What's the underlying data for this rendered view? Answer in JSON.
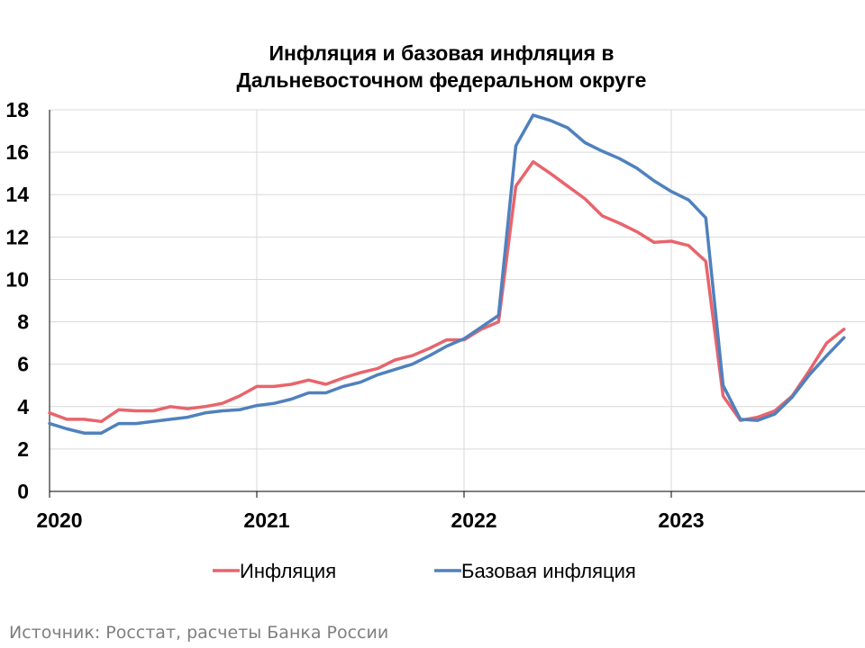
{
  "chart_data": {
    "type": "line",
    "title_line1": "Инфляция и базовая инфляция в",
    "title_line2": "Дальневосточном федеральном округе",
    "xlabel": "",
    "ylabel": "",
    "ylim": [
      0,
      18
    ],
    "yticks": [
      "0",
      "2",
      "4",
      "6",
      "8",
      "10",
      "12",
      "14",
      "16",
      "18"
    ],
    "x_tick_labels": [
      "2020",
      "2021",
      "2022",
      "2023"
    ],
    "grid": true,
    "legend_position": "bottom",
    "x": [
      "2020-01",
      "2020-02",
      "2020-03",
      "2020-04",
      "2020-05",
      "2020-06",
      "2020-07",
      "2020-08",
      "2020-09",
      "2020-10",
      "2020-11",
      "2020-12",
      "2021-01",
      "2021-02",
      "2021-03",
      "2021-04",
      "2021-05",
      "2021-06",
      "2021-07",
      "2021-08",
      "2021-09",
      "2021-10",
      "2021-11",
      "2021-12",
      "2022-01",
      "2022-02",
      "2022-03",
      "2022-04",
      "2022-05",
      "2022-06",
      "2022-07",
      "2022-08",
      "2022-09",
      "2022-10",
      "2022-11",
      "2022-12",
      "2023-01",
      "2023-02",
      "2023-03",
      "2023-04",
      "2023-05",
      "2023-06",
      "2023-07",
      "2023-08",
      "2023-09",
      "2023-10",
      "2023-11"
    ],
    "series": [
      {
        "name": "Инфляция",
        "color": "#e8646c",
        "values": [
          3.7,
          3.4,
          3.4,
          3.3,
          3.85,
          3.8,
          3.8,
          4.0,
          3.9,
          4.0,
          4.15,
          4.5,
          4.95,
          4.95,
          5.05,
          5.25,
          5.05,
          5.35,
          5.6,
          5.8,
          6.2,
          6.4,
          6.75,
          7.15,
          7.15,
          7.65,
          8.0,
          14.4,
          15.55,
          15.0,
          14.4,
          13.8,
          13.0,
          12.65,
          12.25,
          11.75,
          11.8,
          11.6,
          10.85,
          4.5,
          3.35,
          3.5,
          3.8,
          4.5,
          5.7,
          7.0,
          7.65
        ]
      },
      {
        "name": "Базовая инфляция",
        "color": "#4f81bd",
        "values": [
          3.2,
          2.95,
          2.75,
          2.75,
          3.2,
          3.2,
          3.3,
          3.4,
          3.5,
          3.7,
          3.8,
          3.85,
          4.05,
          4.15,
          4.35,
          4.65,
          4.65,
          4.95,
          5.15,
          5.5,
          5.75,
          6.0,
          6.4,
          6.85,
          7.2,
          7.75,
          8.3,
          16.3,
          17.75,
          17.5,
          17.15,
          16.45,
          16.05,
          15.7,
          15.25,
          14.65,
          14.15,
          13.75,
          12.9,
          5.0,
          3.4,
          3.35,
          3.65,
          4.45,
          5.5,
          6.4,
          7.25
        ]
      }
    ]
  },
  "source_text": "Источник: Росстат, расчеты Банка России"
}
